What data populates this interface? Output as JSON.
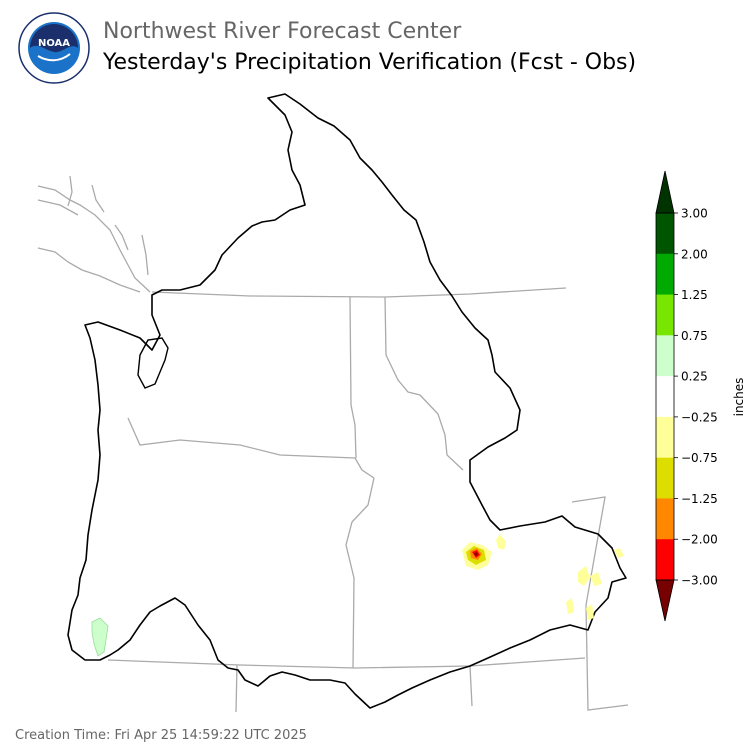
{
  "header": {
    "agency": "Northwest River Forecast Center",
    "title": "Yesterday's Precipitation Verification (Fcst - Obs)"
  },
  "logo": {
    "text": "NOAA",
    "icon": "noaa-logo-icon"
  },
  "footer": {
    "creation_time": "Creation Time: Fri Apr 25 14:59:22 UTC 2025"
  },
  "colorbar": {
    "label": "inches",
    "ticks": [
      "3.00",
      "2.00",
      "1.25",
      "0.75",
      "0.25",
      "−0.25",
      "−0.75",
      "−1.25",
      "−2.00",
      "−3.00"
    ],
    "bins": [
      {
        "color": "#005500"
      },
      {
        "color": "#00aa00"
      },
      {
        "color": "#77e600"
      },
      {
        "color": "#ccffcc"
      },
      {
        "color": "#ffffff"
      },
      {
        "color": "#ffff99"
      },
      {
        "color": "#dddd00"
      },
      {
        "color": "#ff8800"
      },
      {
        "color": "#ff0000"
      }
    ],
    "over_color": "#003300",
    "under_color": "#770000"
  }
}
